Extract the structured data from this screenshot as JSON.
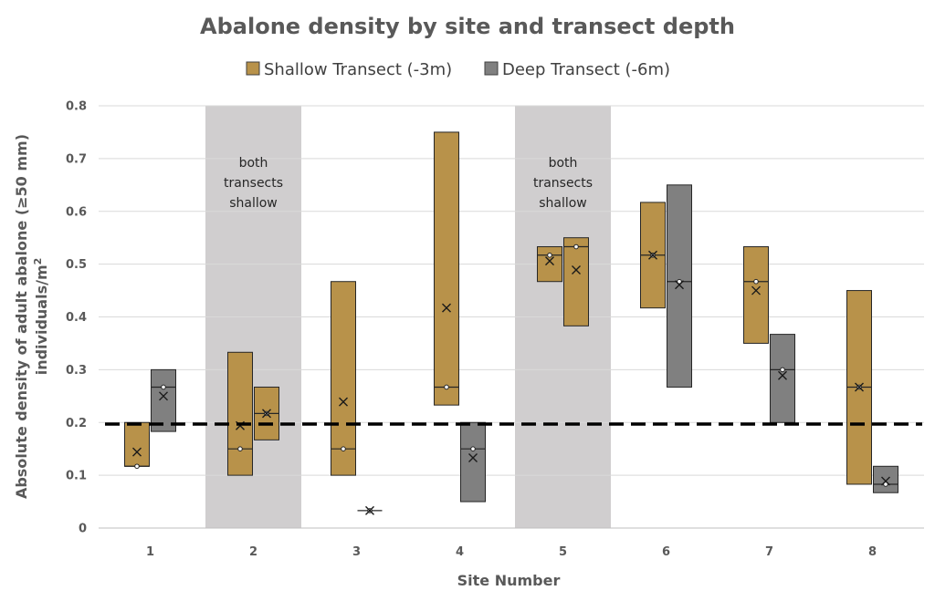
{
  "chart_data": {
    "type": "box",
    "title": "Abalone density by site and transect depth",
    "xlabel": "Site Number",
    "ylabel": "Absolute density of adult abalone (≥50 mm)",
    "ylabel_units": "individuals/m",
    "ylabel_units_exponent": "2",
    "ylim": [
      0,
      0.8
    ],
    "yticks": [
      "0",
      "0.1",
      "0.2",
      "0.3",
      "0.4",
      "0.5",
      "0.6",
      "0.7",
      "0.8"
    ],
    "categories": [
      "1",
      "2",
      "3",
      "4",
      "5",
      "6",
      "7",
      "8"
    ],
    "grid": true,
    "legend_position": "top",
    "threshold_line": 0.197,
    "shaded_sites": [
      {
        "site": 2,
        "label_lines": [
          "both",
          "transects",
          "shallow"
        ]
      },
      {
        "site": 5,
        "label_lines": [
          "both",
          "transects",
          "shallow"
        ]
      }
    ],
    "series": [
      {
        "name": "Shallow Transect (-3m)",
        "color": "#b8924a",
        "boxes": [
          {
            "site": 1,
            "low": 0.117,
            "high": 0.2,
            "median": 0.117,
            "mean": 0.144
          },
          {
            "site": 2,
            "low": 0.1,
            "high": 0.333,
            "median": 0.15,
            "mean": 0.194
          },
          {
            "site": 3,
            "low": 0.1,
            "high": 0.467,
            "median": 0.15,
            "mean": 0.239
          },
          {
            "site": 4,
            "low": 0.233,
            "high": 0.75,
            "median": 0.267,
            "mean": 0.417
          },
          {
            "site": 5,
            "low": 0.467,
            "high": 0.533,
            "median": 0.517,
            "mean": 0.506
          },
          {
            "site": 6,
            "low": 0.417,
            "high": 0.617,
            "median": 0.517,
            "mean": 0.517
          },
          {
            "site": 7,
            "low": 0.35,
            "high": 0.533,
            "median": 0.467,
            "mean": 0.45
          },
          {
            "site": 8,
            "low": 0.083,
            "high": 0.45,
            "median": 0.267,
            "mean": 0.267
          }
        ]
      },
      {
        "name": "Deep Transect (-6m)",
        "color": "#808080",
        "boxes": [
          {
            "site": 1,
            "low": 0.183,
            "high": 0.3,
            "median": 0.267,
            "mean": 0.25
          },
          {
            "site": 2,
            "low": 0.167,
            "high": 0.267,
            "median": 0.217,
            "mean": 0.217,
            "shallow": true
          },
          {
            "site": 3,
            "low": 0.033,
            "high": 0.033,
            "median": 0.033,
            "mean": 0.033
          },
          {
            "site": 4,
            "low": 0.05,
            "high": 0.2,
            "median": 0.15,
            "mean": 0.133
          },
          {
            "site": 5,
            "low": 0.383,
            "high": 0.55,
            "median": 0.533,
            "mean": 0.489,
            "shallow": true
          },
          {
            "site": 6,
            "low": 0.267,
            "high": 0.65,
            "median": 0.467,
            "mean": 0.461
          },
          {
            "site": 7,
            "low": 0.2,
            "high": 0.367,
            "median": 0.3,
            "mean": 0.289
          },
          {
            "site": 8,
            "low": 0.067,
            "high": 0.117,
            "median": 0.083,
            "mean": 0.089
          }
        ]
      }
    ]
  }
}
